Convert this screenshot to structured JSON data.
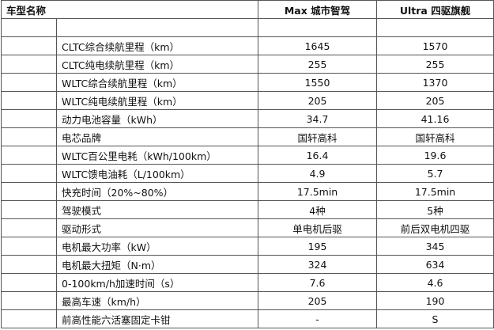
{
  "header": {
    "label": "车型名称",
    "columns": [
      "Max 城市智驾",
      "Ultra 四驱旗舰"
    ]
  },
  "rows": [
    [
      "CLTC综合续航里程（km）",
      "1645",
      "1570"
    ],
    [
      "CLTC纯电续航里程（km）",
      "255",
      "255"
    ],
    [
      "WLTC综合续航里程（km）",
      "1550",
      "1370"
    ],
    [
      "WLTC纯电续航里程（km）",
      "205",
      "205"
    ],
    [
      "动力电池容量（kWh）",
      "34.7",
      "41.16"
    ],
    [
      "电芯品牌",
      "国轩高科",
      "国轩高科"
    ],
    [
      "WLTC百公里电耗（kWh/100km）",
      "16.4",
      "19.6"
    ],
    [
      "WLTC馈电油耗（L/100km）",
      "4.9",
      "5.7"
    ],
    [
      "快充时间（20%~80%）",
      "17.5min",
      "17.5min"
    ],
    [
      "驾驶模式",
      "4种",
      "5种"
    ],
    [
      "驱动形式",
      "单电机后驱",
      "前后双电机四驱"
    ],
    [
      "电机最大功率（kW）",
      "195",
      "345"
    ],
    [
      "电机最大扭矩（N·m）",
      "324",
      "634"
    ],
    [
      "0-100km/h加速时间（s）",
      "7.6",
      "4.6"
    ],
    [
      "最高车速（km/h）",
      "205",
      "190"
    ],
    [
      "前高性能六活塞固定卡钳",
      "-",
      "S"
    ]
  ]
}
